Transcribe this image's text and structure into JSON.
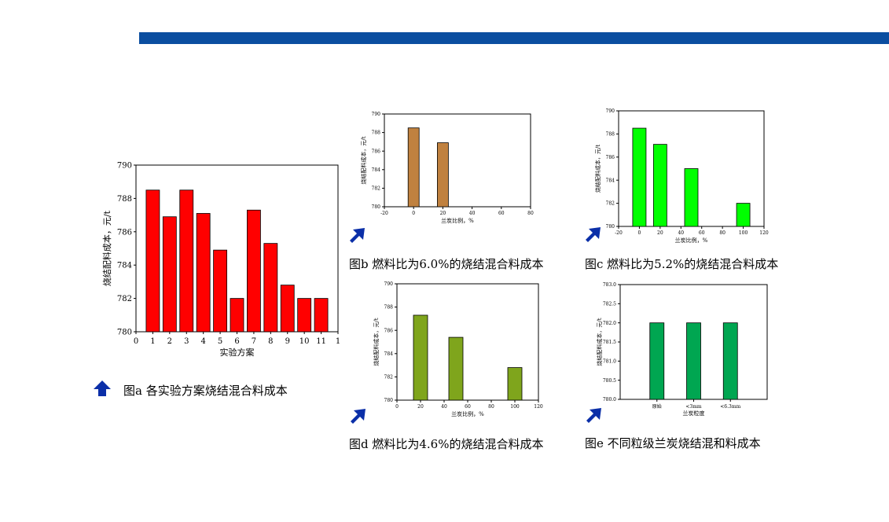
{
  "colors": {
    "accent_bar": "#0b4ea0",
    "arrow": "#0b2fa8"
  },
  "captions": {
    "a": "图a 各实验方案烧结混合料成本",
    "b": "图b 燃料比为6.0%的烧结混合料成本",
    "c": "图c 燃料比为5.2%的烧结混合料成本",
    "d": "图d 燃料比为4.6%的烧结混合料成本",
    "e": "图e 不同粒级兰炭烧结混和料成本"
  },
  "chart_data": [
    {
      "id": "a",
      "type": "bar",
      "color": "#ff0000",
      "categories": [
        "1",
        "2",
        "3",
        "4",
        "5",
        "6",
        "7",
        "8",
        "9",
        "10",
        "11"
      ],
      "values": [
        788.5,
        786.9,
        788.5,
        787.1,
        784.9,
        782.0,
        787.3,
        785.3,
        782.8,
        782.0,
        782.0
      ],
      "xticks": [
        "0",
        "1",
        "2",
        "3",
        "4",
        "5",
        "6",
        "7",
        "8",
        "9",
        "10",
        "11",
        "1"
      ],
      "yticks": [
        "780",
        "782",
        "784",
        "786",
        "788",
        "790"
      ],
      "ylim": [
        780,
        790
      ],
      "xlabel": "实验方案",
      "ylabel": "烧结配料成本，元/t"
    },
    {
      "id": "b",
      "type": "bar",
      "color": "#c0813f",
      "x": [
        0,
        20
      ],
      "values": [
        788.5,
        786.9
      ],
      "xlim": [
        -20,
        80
      ],
      "xticks": [
        "-20",
        "0",
        "20",
        "40",
        "60",
        "80"
      ],
      "yticks": [
        "780",
        "782",
        "784",
        "786",
        "788",
        "790"
      ],
      "ylim": [
        780,
        790
      ],
      "xlabel": "兰炭比例，%",
      "ylabel": "烧结配料成本，元/t"
    },
    {
      "id": "c",
      "type": "bar",
      "color": "#00ff00",
      "x": [
        0,
        20,
        50,
        100
      ],
      "values": [
        788.5,
        787.1,
        785.0,
        782.0
      ],
      "xlim": [
        -20,
        120
      ],
      "xticks": [
        "-20",
        "0",
        "20",
        "40",
        "60",
        "80",
        "100",
        "120"
      ],
      "yticks": [
        "780",
        "782",
        "784",
        "786",
        "788",
        "790"
      ],
      "ylim": [
        780,
        790
      ],
      "xlabel": "兰炭比例，%",
      "ylabel": "烧结配料成本，元/t"
    },
    {
      "id": "d",
      "type": "bar",
      "color": "#7fa51c",
      "x": [
        20,
        50,
        100
      ],
      "values": [
        787.3,
        785.4,
        782.8
      ],
      "xlim": [
        0,
        120
      ],
      "xticks": [
        "0",
        "20",
        "40",
        "60",
        "80",
        "100",
        "120"
      ],
      "yticks": [
        "780",
        "782",
        "784",
        "786",
        "788",
        "790"
      ],
      "ylim": [
        780,
        790
      ],
      "xlabel": "兰炭比例，%",
      "ylabel": "烧结配料成本，元/t"
    },
    {
      "id": "e",
      "type": "bar",
      "color": "#00a651",
      "categories": [
        "原始",
        "<3mm",
        "<6.3mm"
      ],
      "values": [
        782.0,
        782.0,
        782.0
      ],
      "yticks": [
        "780.0",
        "780.5",
        "781.0",
        "781.5",
        "782.0",
        "782.5",
        "783.0"
      ],
      "ylim": [
        780,
        783
      ],
      "xlabel": "兰炭粒度",
      "ylabel": "烧结配料成本，元/t"
    }
  ]
}
